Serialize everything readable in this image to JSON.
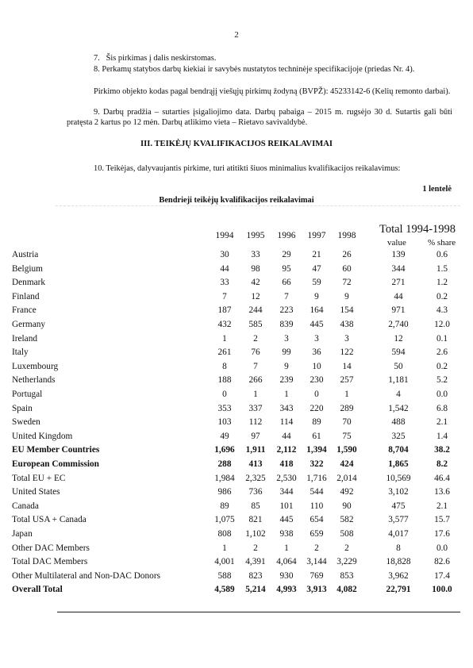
{
  "page_number": "2",
  "paragraphs": {
    "p7": "7.   Šis pirkimas į dalis neskirstomas.",
    "p8": "8. Perkamų statybos darbų kiekiai ir savybės nustatytos techninėje specifikacijoje (priedas Nr. 4).",
    "p_code": "Pirkimo objekto kodas pagal bendrąjį viešųjų pirkimų žodyną (BVPŽ): 45233142-6 (Kelių remonto darbai).",
    "p9": "9. Darbų pradžia – sutarties įsigaliojimo data. Darbų pabaiga – 2015 m. rugsėjo 30 d. Sutartis gali būti pratęsta 2 kartus po 12 mėn. Darbų atlikimo vieta – Rietavo savivaldybė.",
    "section_heading": "III. TEIKĖJŲ KVALIFIKACIJOS REIKALAVIMAI",
    "p10": "10. Teikėjas, dalyvaujantis pirkime, turi atitikti šiuos minimalius kvalifikacijos reikalavimus:"
  },
  "table": {
    "number_label": "1 lentelė",
    "title": "Bendrieji teikėjų kvalifikacijos reikalavimai",
    "years": [
      "1994",
      "1995",
      "1996",
      "1997",
      "1998"
    ],
    "total_header": "Total 1994-1998",
    "value_header": "value",
    "share_header": "% share",
    "rows": [
      {
        "label": "Austria",
        "values": [
          "30",
          "33",
          "29",
          "21",
          "26"
        ],
        "total": "139",
        "share": "0.6"
      },
      {
        "label": "Belgium",
        "values": [
          "44",
          "98",
          "95",
          "47",
          "60"
        ],
        "total": "344",
        "share": "1.5"
      },
      {
        "label": "Denmark",
        "values": [
          "33",
          "42",
          "66",
          "59",
          "72"
        ],
        "total": "271",
        "share": "1.2"
      },
      {
        "label": "Finland",
        "values": [
          "7",
          "12",
          "7",
          "9",
          "9"
        ],
        "total": "44",
        "share": "0.2"
      },
      {
        "label": "France",
        "values": [
          "187",
          "244",
          "223",
          "164",
          "154"
        ],
        "total": "971",
        "share": "4.3"
      },
      {
        "label": "Germany",
        "values": [
          "432",
          "585",
          "839",
          "445",
          "438"
        ],
        "total": "2,740",
        "share": "12.0"
      },
      {
        "label": "Ireland",
        "values": [
          "1",
          "2",
          "3",
          "3",
          "3"
        ],
        "total": "12",
        "share": "0.1"
      },
      {
        "label": "Italy",
        "values": [
          "261",
          "76",
          "99",
          "36",
          "122"
        ],
        "total": "594",
        "share": "2.6"
      },
      {
        "label": "Luxembourg",
        "values": [
          "8",
          "7",
          "9",
          "10",
          "14"
        ],
        "total": "50",
        "share": "0.2"
      },
      {
        "label": "Netherlands",
        "values": [
          "188",
          "266",
          "239",
          "230",
          "257"
        ],
        "total": "1,181",
        "share": "5.2"
      },
      {
        "label": "Portugal",
        "values": [
          "0",
          "1",
          "1",
          "0",
          "1"
        ],
        "total": "4",
        "share": "0.0"
      },
      {
        "label": "Spain",
        "values": [
          "353",
          "337",
          "343",
          "220",
          "289"
        ],
        "total": "1,542",
        "share": "6.8"
      },
      {
        "label": "Sweden",
        "values": [
          "103",
          "112",
          "114",
          "89",
          "70"
        ],
        "total": "488",
        "share": "2.1"
      },
      {
        "label": "United Kingdom",
        "values": [
          "49",
          "97",
          "44",
          "61",
          "75"
        ],
        "total": "325",
        "share": "1.4"
      },
      {
        "label": "EU Member Countries",
        "values": [
          "1,696",
          "1,911",
          "2,112",
          "1,394",
          "1,590"
        ],
        "total": "8,704",
        "share": "38.2",
        "bold": true
      },
      {
        "label": "European Commission",
        "values": [
          "288",
          "413",
          "418",
          "322",
          "424"
        ],
        "total": "1,865",
        "share": "8.2",
        "bold": true
      },
      {
        "label": "Total EU + EC",
        "values": [
          "1,984",
          "2,325",
          "2,530",
          "1,716",
          "2,014"
        ],
        "total": "10,569",
        "share": "46.4"
      },
      {
        "label": "United States",
        "values": [
          "986",
          "736",
          "344",
          "544",
          "492"
        ],
        "total": "3,102",
        "share": "13.6"
      },
      {
        "label": "Canada",
        "values": [
          "89",
          "85",
          "101",
          "110",
          "90"
        ],
        "total": "475",
        "share": "2.1"
      },
      {
        "label": "Total USA + Canada",
        "values": [
          "1,075",
          "821",
          "445",
          "654",
          "582"
        ],
        "total": "3,577",
        "share": "15.7"
      },
      {
        "label": "Japan",
        "values": [
          "808",
          "1,102",
          "938",
          "659",
          "508"
        ],
        "total": "4,017",
        "share": "17.6"
      },
      {
        "label": "Other DAC Members",
        "values": [
          "1",
          "2",
          "1",
          "2",
          "2"
        ],
        "total": "8",
        "share": "0.0"
      },
      {
        "label": "Total DAC Members",
        "values": [
          "4,001",
          "4,391",
          "4,064",
          "3,144",
          "3,229"
        ],
        "total": "18,828",
        "share": "82.6"
      },
      {
        "label": "Other Multilateral and Non-DAC Donors",
        "values": [
          "588",
          "823",
          "930",
          "769",
          "853"
        ],
        "total": "3,962",
        "share": "17.4"
      },
      {
        "label": "Overall Total",
        "values": [
          "4,589",
          "5,214",
          "4,993",
          "3,913",
          "4,082"
        ],
        "total": "22,791",
        "share": "100.0",
        "bold": true
      }
    ]
  }
}
